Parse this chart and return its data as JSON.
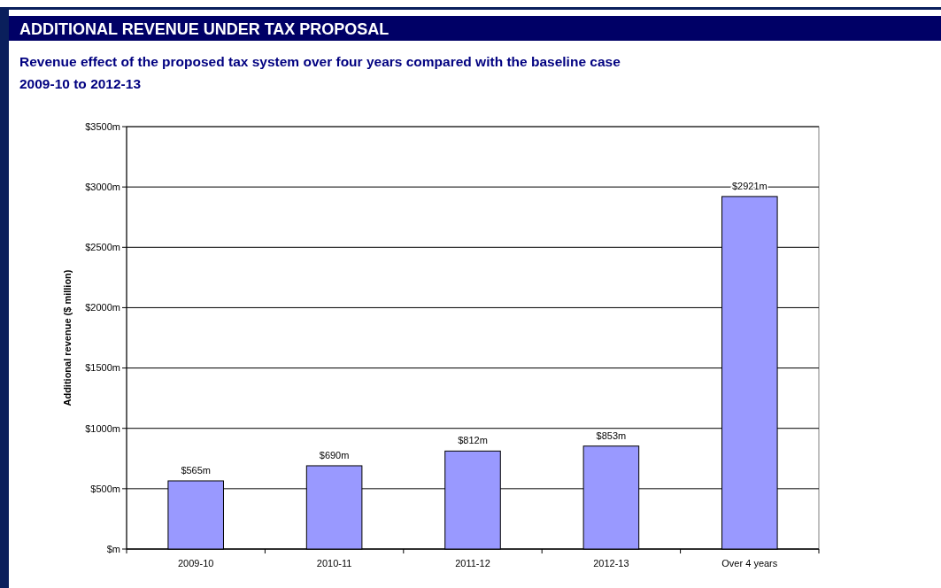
{
  "chart_data": {
    "type": "bar",
    "title": "ADDITIONAL REVENUE UNDER TAX PROPOSAL",
    "subtitle": "Revenue effect of the proposed tax system over four years compared with the baseline case 2009-10 to 2012-13",
    "ylabel": "Additional revenue ($ million)",
    "categories": [
      "2009-10",
      "2010-11",
      "2011-12",
      "2012-13",
      "Over 4 years"
    ],
    "values": [
      565,
      690,
      812,
      853,
      2921
    ],
    "value_labels": [
      "$565m",
      "$690m",
      "$812m",
      "$853m",
      "$2921m"
    ],
    "color": "#9999ff",
    "ylim": [
      0,
      3500
    ],
    "yticks": [
      {
        "value": 0,
        "label": "$m"
      },
      {
        "value": 500,
        "label": "$500m"
      },
      {
        "value": 1000,
        "label": "$1000m"
      },
      {
        "value": 1500,
        "label": "$1500m"
      },
      {
        "value": 2000,
        "label": "$2000m"
      },
      {
        "value": 2500,
        "label": "$2500m"
      },
      {
        "value": 3000,
        "label": "$3000m"
      },
      {
        "value": 3500,
        "label": "$3500m"
      }
    ],
    "grid": "y"
  }
}
